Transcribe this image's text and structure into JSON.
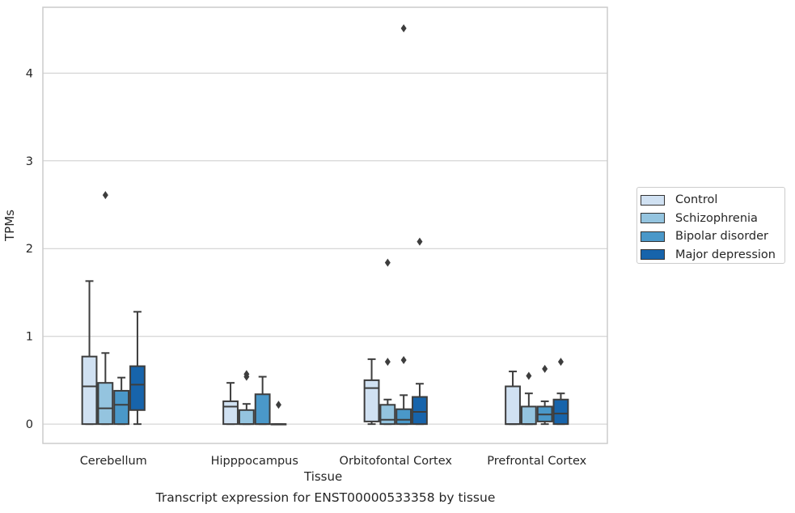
{
  "chart_data": {
    "type": "box",
    "xlabel": "Tissue",
    "ylabel": "TPMs",
    "caption": "Transcript expression for ENST00000533358 by tissue",
    "ylim": [
      -0.22,
      4.75
    ],
    "yticks": [
      0,
      1,
      2,
      3,
      4
    ],
    "grid": "horizontal",
    "legend_position": "right",
    "categories": [
      "Cerebellum",
      "Hipppocampus",
      "Orbitofontal Cortex",
      "Prefrontal Cortex"
    ],
    "series": [
      {
        "name": "Control",
        "color": "#d0e1f2",
        "boxes": [
          {
            "whisker_low": 0.0,
            "q1": 0.0,
            "median": 0.43,
            "q3": 0.77,
            "whisker_high": 1.63,
            "outliers": []
          },
          {
            "whisker_low": 0.0,
            "q1": 0.0,
            "median": 0.2,
            "q3": 0.26,
            "whisker_high": 0.47,
            "outliers": []
          },
          {
            "whisker_low": 0.0,
            "q1": 0.03,
            "median": 0.41,
            "q3": 0.5,
            "whisker_high": 0.74,
            "outliers": []
          },
          {
            "whisker_low": 0.0,
            "q1": 0.0,
            "median": 0.0,
            "q3": 0.43,
            "whisker_high": 0.6,
            "outliers": []
          }
        ]
      },
      {
        "name": "Schizophrenia",
        "color": "#94c4df",
        "boxes": [
          {
            "whisker_low": 0.0,
            "q1": 0.0,
            "median": 0.18,
            "q3": 0.47,
            "whisker_high": 0.81,
            "outliers": [
              2.61
            ]
          },
          {
            "whisker_low": 0.0,
            "q1": 0.0,
            "median": 0.0,
            "q3": 0.16,
            "whisker_high": 0.23,
            "outliers": [
              0.54,
              0.57
            ]
          },
          {
            "whisker_low": 0.0,
            "q1": 0.0,
            "median": 0.05,
            "q3": 0.22,
            "whisker_high": 0.28,
            "outliers": [
              0.71,
              1.84
            ]
          },
          {
            "whisker_low": 0.0,
            "q1": 0.0,
            "median": 0.0,
            "q3": 0.2,
            "whisker_high": 0.35,
            "outliers": [
              0.55
            ]
          }
        ]
      },
      {
        "name": "Bipolar disorder",
        "color": "#4a98c9",
        "boxes": [
          {
            "whisker_low": 0.0,
            "q1": 0.0,
            "median": 0.22,
            "q3": 0.38,
            "whisker_high": 0.53,
            "outliers": []
          },
          {
            "whisker_low": 0.0,
            "q1": 0.0,
            "median": 0.0,
            "q3": 0.34,
            "whisker_high": 0.54,
            "outliers": []
          },
          {
            "whisker_low": 0.0,
            "q1": 0.0,
            "median": 0.05,
            "q3": 0.17,
            "whisker_high": 0.33,
            "outliers": [
              0.73,
              4.51
            ]
          },
          {
            "whisker_low": 0.0,
            "q1": 0.03,
            "median": 0.11,
            "q3": 0.2,
            "whisker_high": 0.26,
            "outliers": [
              0.63
            ]
          }
        ]
      },
      {
        "name": "Major depression",
        "color": "#1764ab",
        "boxes": [
          {
            "whisker_low": 0.0,
            "q1": 0.16,
            "median": 0.45,
            "q3": 0.66,
            "whisker_high": 1.28,
            "outliers": []
          },
          {
            "whisker_low": 0.0,
            "q1": 0.0,
            "median": 0.0,
            "q3": 0.0,
            "whisker_high": 0.0,
            "outliers": [
              0.22
            ]
          },
          {
            "whisker_low": 0.0,
            "q1": 0.0,
            "median": 0.14,
            "q3": 0.31,
            "whisker_high": 0.46,
            "outliers": [
              2.08
            ]
          },
          {
            "whisker_low": 0.0,
            "q1": 0.0,
            "median": 0.12,
            "q3": 0.28,
            "whisker_high": 0.35,
            "outliers": [
              0.71
            ]
          }
        ]
      }
    ]
  }
}
